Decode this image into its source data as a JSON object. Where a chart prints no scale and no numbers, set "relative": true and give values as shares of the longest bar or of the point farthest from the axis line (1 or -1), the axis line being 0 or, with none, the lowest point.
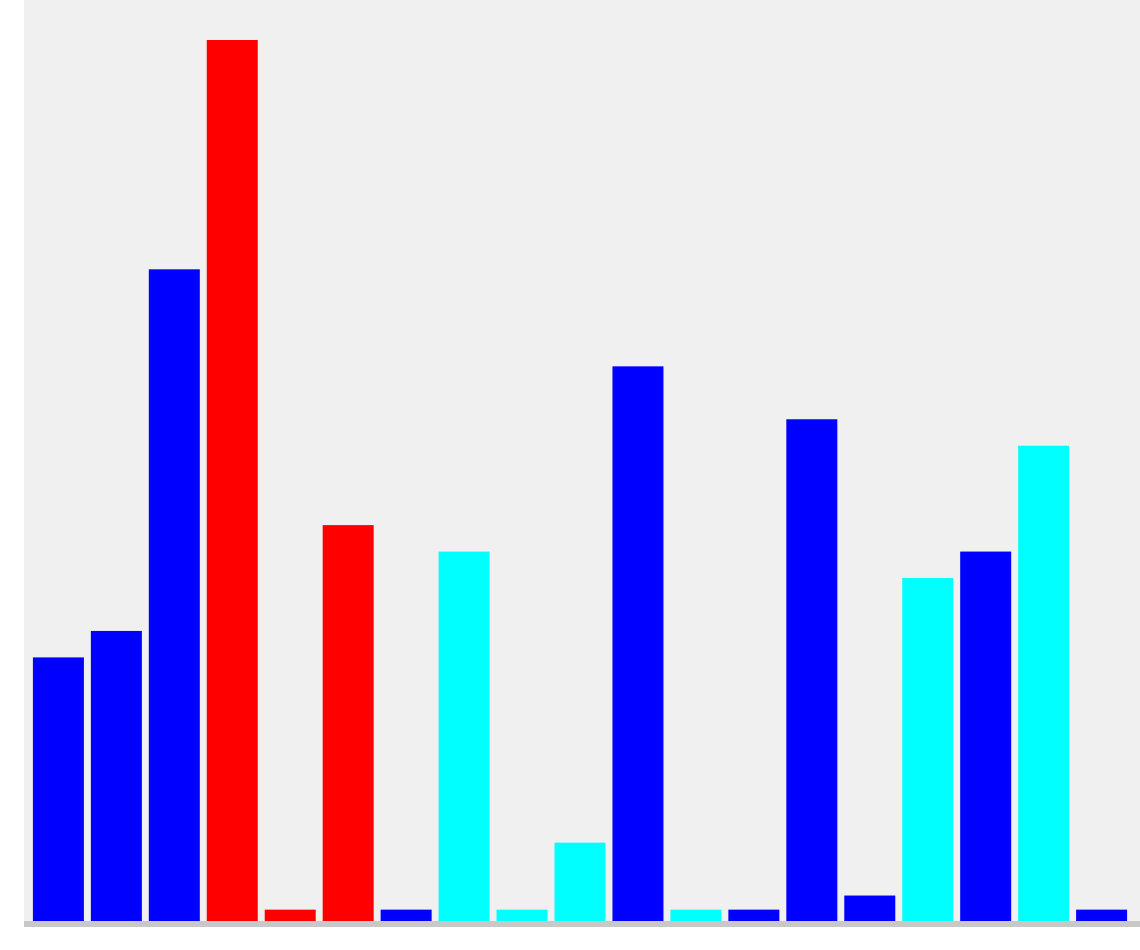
{
  "chart_data": {
    "type": "bar",
    "relative": true,
    "categories": [
      null,
      null,
      null,
      null,
      null,
      null,
      null,
      null,
      null,
      null,
      null,
      null,
      null,
      null,
      null,
      null,
      null,
      null,
      null
    ],
    "values": [
      0.3,
      0.33,
      0.74,
      1,
      0.014,
      0.45,
      0.014,
      0.42,
      0.014,
      0.09,
      0.63,
      0.014,
      0.014,
      0.57,
      0.03,
      0.39,
      0.42,
      0.54,
      0.014
    ],
    "colors": [
      "#0000ff",
      "#0000ff",
      "#0000ff",
      "#ff0000",
      "#ff0000",
      "#ff0000",
      "#0000ff",
      "#00ffff",
      "#00ffff",
      "#00ffff",
      "#0000ff",
      "#00ffff",
      "#0000ff",
      "#0000ff",
      "#0000ff",
      "#00ffff",
      "#0000ff",
      "#00ffff",
      "#0000ff"
    ]
  }
}
